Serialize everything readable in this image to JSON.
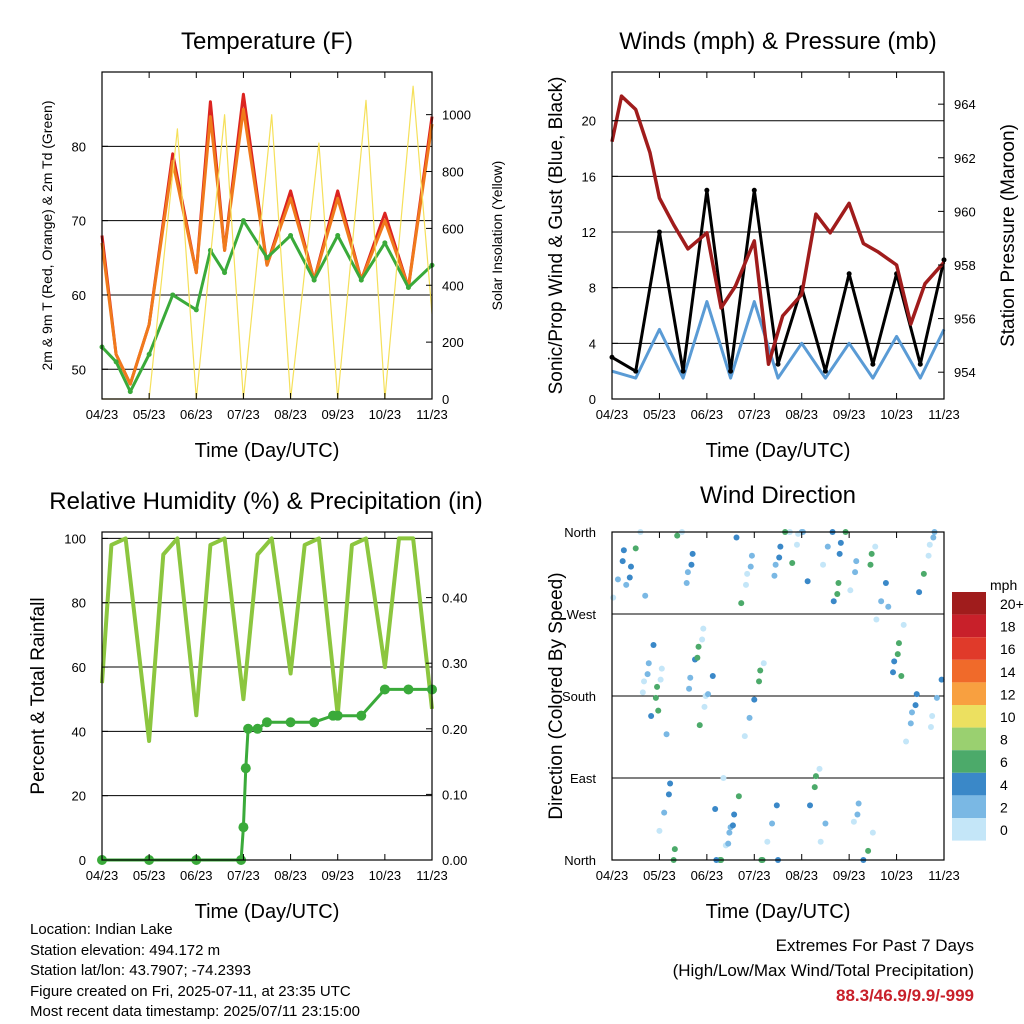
{
  "panels": {
    "temp": {
      "title": "Temperature (F)",
      "ylabel": "2m & 9m T (Red, Orange) & 2m Td (Green)",
      "ylabel_right": "Solar Insolation (Yellow)",
      "xlabel": "Time (Day/UTC)"
    },
    "wind": {
      "title": "Winds (mph) & Pressure (mb)",
      "ylabel": "Sonic/Prop Wind & Gust (Blue, Black)",
      "ylabel_right": "Station Pressure (Maroon)",
      "xlabel": "Time (Day/UTC)"
    },
    "rh": {
      "title": "Relative Humidity (%) & Precipitation (in)",
      "ylabel": "Percent & Total Rainfall",
      "xlabel": "Time (Day/UTC)"
    },
    "dir": {
      "title": "Wind Direction",
      "ylabel": "Direction (Colored By Speed)",
      "xlabel": "Time (Day/UTC)"
    }
  },
  "footer": {
    "location": "Location: Indian Lake",
    "elevation": "Station elevation: 494.172 m",
    "latlon": "Station lat/lon: 43.7907; -74.2393",
    "created": "Figure created on Fri, 2025-07-11, at 23:35 UTC",
    "recent": "Most recent data timestamp: 2025/07/11 23:15:00"
  },
  "extremes": {
    "line1": "Extremes For Past 7 Days",
    "line2": "(High/Low/Max Wind/Total Precipitation)",
    "values": "88.3/46.9/9.9/-999"
  },
  "chart_data": [
    {
      "id": "temp",
      "type": "line",
      "title": "Temperature (F)",
      "xlabel": "Time (Day/UTC)",
      "ylabel": "2m & 9m T (Red, Orange) & 2m Td (Green)",
      "ylabel_right": "Solar Insolation (Yellow)",
      "x_ticks": [
        "04/23",
        "05/23",
        "06/23",
        "07/23",
        "08/23",
        "09/23",
        "10/23",
        "11/23"
      ],
      "y_ticks": [
        50,
        60,
        70,
        80
      ],
      "ylim": [
        46,
        90
      ],
      "y2_ticks": [
        0,
        200,
        400,
        600,
        800,
        1000
      ],
      "y2lim": [
        0,
        1150
      ],
      "grid": true,
      "colors": {
        "t2m": "#dc2420",
        "t9m": "#f07a1c",
        "td": "#3aaa3a",
        "solar": "#f5e05a"
      },
      "series": [
        {
          "name": "2m T",
          "key": "t2m",
          "x": [
            0,
            0.3,
            0.6,
            1,
            1.5,
            2,
            2.3,
            2.6,
            3,
            3.5,
            4,
            4.5,
            5,
            5.5,
            6,
            6.5,
            7
          ],
          "y": [
            68,
            52,
            48,
            56,
            79,
            63,
            86,
            66,
            87,
            64,
            74,
            62,
            74,
            62,
            71,
            61,
            84
          ]
        },
        {
          "name": "9m T",
          "key": "t9m",
          "x": [
            0,
            0.3,
            0.6,
            1,
            1.5,
            2,
            2.3,
            2.6,
            3,
            3.5,
            4,
            4.5,
            5,
            5.5,
            6,
            6.5,
            7
          ],
          "y": [
            67,
            52,
            48,
            56,
            78,
            63,
            84,
            66,
            85,
            64,
            73,
            62,
            73,
            62,
            70,
            61,
            83
          ]
        },
        {
          "name": "2m Td",
          "key": "td",
          "x": [
            0,
            0.3,
            0.6,
            1,
            1.5,
            2,
            2.3,
            2.6,
            3,
            3.5,
            4,
            4.5,
            5,
            5.5,
            6,
            6.5,
            7
          ],
          "y": [
            53,
            51,
            47,
            52,
            60,
            58,
            66,
            63,
            70,
            65,
            68,
            62,
            68,
            62,
            67,
            61,
            64
          ]
        },
        {
          "name": "Solar",
          "key": "solar",
          "x": [
            0,
            0.5,
            1,
            1.6,
            2,
            2.6,
            3,
            3.6,
            4,
            4.6,
            5,
            5.6,
            6,
            6.6,
            7
          ],
          "y": [
            0,
            0,
            0,
            950,
            0,
            1000,
            0,
            1000,
            0,
            900,
            0,
            1050,
            0,
            1100,
            300
          ]
        }
      ]
    },
    {
      "id": "wind",
      "type": "line",
      "title": "Winds (mph) & Pressure (mb)",
      "xlabel": "Time (Day/UTC)",
      "ylabel": "Sonic/Prop Wind & Gust (Blue, Black)",
      "ylabel_right": "Station Pressure (Maroon)",
      "x_ticks": [
        "04/23",
        "05/23",
        "06/23",
        "07/23",
        "08/23",
        "09/23",
        "10/23",
        "11/23"
      ],
      "y_ticks": [
        0,
        4,
        8,
        12,
        16,
        20
      ],
      "ylim": [
        0,
        23.5
      ],
      "y2_ticks": [
        954,
        956,
        958,
        960,
        962,
        964
      ],
      "y2lim": [
        953,
        965.2
      ],
      "grid": true,
      "colors": {
        "wind": "#5a9bd5",
        "gust": "#000000",
        "pressure": "#a01c1c"
      },
      "series": [
        {
          "name": "Wind",
          "key": "wind",
          "x": [
            0,
            0.5,
            1,
            1.5,
            2,
            2.5,
            3,
            3.5,
            4,
            4.5,
            5,
            5.5,
            6,
            6.5,
            7
          ],
          "y": [
            2,
            1.5,
            5,
            1.5,
            7,
            1.5,
            7,
            1.5,
            4,
            1.5,
            4,
            1.5,
            4.5,
            1.5,
            5
          ]
        },
        {
          "name": "Gust",
          "key": "gust",
          "x": [
            0,
            0.5,
            1,
            1.5,
            2,
            2.5,
            3,
            3.5,
            4,
            4.5,
            5,
            5.5,
            6,
            6.5,
            7
          ],
          "y": [
            3,
            2,
            12,
            2,
            15,
            2,
            15,
            2.5,
            8,
            2,
            9,
            2.5,
            9,
            2.5,
            10
          ]
        },
        {
          "name": "Pressure",
          "key": "pressure",
          "x": [
            0,
            0.2,
            0.5,
            0.8,
            1,
            1.3,
            1.6,
            2,
            2.3,
            2.6,
            3,
            3.3,
            3.6,
            4,
            4.3,
            4.6,
            5,
            5.3,
            5.6,
            6,
            6.3,
            6.6,
            7
          ],
          "y": [
            962.6,
            964.3,
            963.8,
            962.2,
            960.5,
            959.5,
            958.6,
            959.2,
            956.4,
            957.2,
            958.9,
            954.3,
            956.1,
            956.9,
            959.9,
            959.2,
            960.3,
            958.8,
            958.5,
            958.0,
            955.8,
            957.3,
            958.1
          ]
        }
      ]
    },
    {
      "id": "rh",
      "type": "line",
      "title": "Relative Humidity (%) & Precipitation (in)",
      "xlabel": "Time (Day/UTC)",
      "ylabel": "Percent & Total Rainfall",
      "x_ticks": [
        "04/23",
        "05/23",
        "06/23",
        "07/23",
        "08/23",
        "09/23",
        "10/23",
        "11/23"
      ],
      "y_ticks": [
        0,
        20,
        40,
        60,
        80,
        100
      ],
      "ylim": [
        0,
        102
      ],
      "y2_ticks": [
        "0.00",
        "0.10",
        "0.20",
        "0.30",
        "0.40"
      ],
      "y2lim": [
        0,
        0.5
      ],
      "grid": true,
      "colors": {
        "rh": "#8cc63f",
        "precip": "#3aaa3a"
      },
      "series": [
        {
          "name": "RH",
          "key": "rh",
          "x": [
            0,
            0.2,
            0.5,
            1,
            1.3,
            1.6,
            2,
            2.3,
            2.6,
            3,
            3.3,
            3.6,
            4,
            4.3,
            4.6,
            5,
            5.3,
            5.6,
            6,
            6.3,
            6.6,
            7
          ],
          "y": [
            55,
            98,
            100,
            37,
            95,
            100,
            45,
            98,
            100,
            50,
            95,
            100,
            58,
            98,
            100,
            45,
            98,
            100,
            60,
            100,
            100,
            47
          ]
        },
        {
          "name": "Precip",
          "key": "precip",
          "x": [
            0,
            1,
            2,
            2.95,
            3.0,
            3.05,
            3.1,
            3.3,
            3.5,
            4,
            4.5,
            4.9,
            5,
            5.5,
            6,
            6.5,
            7
          ],
          "y": [
            0,
            0,
            0,
            0,
            0.05,
            0.14,
            0.2,
            0.2,
            0.21,
            0.21,
            0.21,
            0.22,
            0.22,
            0.22,
            0.26,
            0.26,
            0.26
          ]
        }
      ]
    },
    {
      "id": "dir",
      "type": "scatter",
      "title": "Wind Direction",
      "xlabel": "Time (Day/UTC)",
      "ylabel": "Direction (Colored By Speed)",
      "x_ticks": [
        "04/23",
        "05/23",
        "06/23",
        "07/23",
        "08/23",
        "09/23",
        "10/23",
        "11/23"
      ],
      "y_ticks": [
        "North",
        "East",
        "South",
        "West",
        "North"
      ],
      "ylim": [
        0,
        360
      ],
      "grid": true,
      "legend": {
        "title": "mph",
        "labels": [
          "20+",
          "18",
          "16",
          "14",
          "12",
          "10",
          "8",
          "6",
          "4",
          "2",
          "0"
        ],
        "colors": [
          "#a01c1c",
          "#c8202a",
          "#e03a2a",
          "#f06a2a",
          "#f8a040",
          "#ece060",
          "#9ad070",
          "#4caa6a",
          "#3a88c8",
          "#7ab8e4",
          "#c4e6f8"
        ]
      },
      "series": [
        {
          "name": "Direction",
          "x": [
            0.1,
            0.5,
            0.8,
            1.0,
            1.2,
            1.5,
            1.8,
            2.0,
            2.3,
            2.5,
            2.8,
            3.0,
            3.3,
            3.6,
            4.0,
            4.3,
            4.6,
            5.0,
            5.3,
            5.6,
            6.0,
            6.3,
            6.6,
            6.9
          ],
          "y": [
            300,
            330,
            200,
            170,
            40,
            340,
            180,
            210,
            20,
            50,
            310,
            180,
            20,
            340,
            350,
            60,
            320,
            340,
            30,
            300,
            250,
            170,
            330,
            190
          ]
        }
      ]
    }
  ]
}
